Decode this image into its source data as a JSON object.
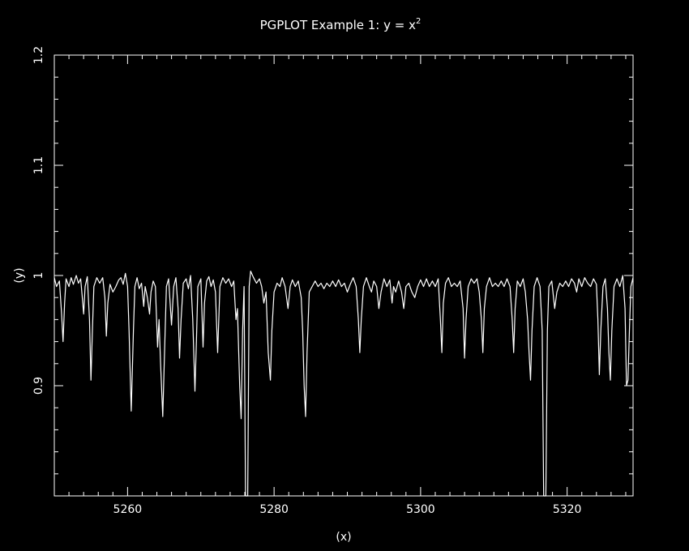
{
  "colors": {
    "background": "#000000",
    "foreground": "#ffffff"
  },
  "chart_data": {
    "type": "line",
    "title": "PGPLOT Example 1: y = x",
    "title_superscript": "2",
    "xlabel": "(x)",
    "ylabel": "(y)",
    "xlim": [
      5250,
      5329
    ],
    "ylim": [
      0.8,
      1.2
    ],
    "x_major_ticks": [
      5260,
      5280,
      5300,
      5320
    ],
    "x_tick_labels": [
      "5260",
      "5280",
      "5300",
      "5320"
    ],
    "y_major_ticks": [
      0.9,
      1.0,
      1.1,
      1.2
    ],
    "y_tick_labels": [
      "0.9",
      "1",
      "1.1",
      "1.2"
    ],
    "grid": false,
    "series": [
      {
        "points": [
          [
            5250.0,
            0.998
          ],
          [
            5250.3,
            0.99
          ],
          [
            5250.7,
            0.995
          ],
          [
            5251.0,
            0.965
          ],
          [
            5251.2,
            0.94
          ],
          [
            5251.4,
            0.975
          ],
          [
            5251.6,
            0.997
          ],
          [
            5252.0,
            0.99
          ],
          [
            5252.3,
            0.998
          ],
          [
            5252.6,
            0.992
          ],
          [
            5253.0,
            1.0
          ],
          [
            5253.3,
            0.993
          ],
          [
            5253.6,
            0.997
          ],
          [
            5253.8,
            0.982
          ],
          [
            5254.0,
            0.965
          ],
          [
            5254.2,
            0.99
          ],
          [
            5254.5,
            0.999
          ],
          [
            5254.8,
            0.96
          ],
          [
            5255.0,
            0.905
          ],
          [
            5255.2,
            0.95
          ],
          [
            5255.4,
            0.99
          ],
          [
            5255.8,
            0.998
          ],
          [
            5256.2,
            0.993
          ],
          [
            5256.6,
            0.998
          ],
          [
            5256.9,
            0.98
          ],
          [
            5257.1,
            0.945
          ],
          [
            5257.3,
            0.975
          ],
          [
            5257.6,
            0.992
          ],
          [
            5258.0,
            0.985
          ],
          [
            5258.4,
            0.99
          ],
          [
            5258.8,
            0.996
          ],
          [
            5259.1,
            0.998
          ],
          [
            5259.4,
            0.992
          ],
          [
            5259.7,
            1.002
          ],
          [
            5260.0,
            0.99
          ],
          [
            5260.2,
            0.95
          ],
          [
            5260.5,
            0.877
          ],
          [
            5260.8,
            0.95
          ],
          [
            5261.0,
            0.99
          ],
          [
            5261.3,
            0.998
          ],
          [
            5261.6,
            0.988
          ],
          [
            5261.9,
            0.993
          ],
          [
            5262.2,
            0.972
          ],
          [
            5262.4,
            0.99
          ],
          [
            5262.7,
            0.98
          ],
          [
            5263.0,
            0.965
          ],
          [
            5263.2,
            0.985
          ],
          [
            5263.5,
            0.995
          ],
          [
            5263.8,
            0.99
          ],
          [
            5264.1,
            0.935
          ],
          [
            5264.3,
            0.96
          ],
          [
            5264.5,
            0.92
          ],
          [
            5264.8,
            0.872
          ],
          [
            5265.0,
            0.92
          ],
          [
            5265.3,
            0.99
          ],
          [
            5265.6,
            0.997
          ],
          [
            5266.0,
            0.955
          ],
          [
            5266.3,
            0.99
          ],
          [
            5266.6,
            0.998
          ],
          [
            5266.9,
            0.97
          ],
          [
            5267.1,
            0.925
          ],
          [
            5267.3,
            0.96
          ],
          [
            5267.6,
            0.993
          ],
          [
            5268.0,
            0.997
          ],
          [
            5268.3,
            0.988
          ],
          [
            5268.6,
            1.0
          ],
          [
            5268.9,
            0.96
          ],
          [
            5269.2,
            0.895
          ],
          [
            5269.4,
            0.94
          ],
          [
            5269.6,
            0.99
          ],
          [
            5270.0,
            0.997
          ],
          [
            5270.3,
            0.935
          ],
          [
            5270.5,
            0.975
          ],
          [
            5270.8,
            0.995
          ],
          [
            5271.1,
            0.999
          ],
          [
            5271.4,
            0.99
          ],
          [
            5271.7,
            0.996
          ],
          [
            5272.0,
            0.985
          ],
          [
            5272.3,
            0.93
          ],
          [
            5272.6,
            0.99
          ],
          [
            5273.0,
            0.998
          ],
          [
            5273.4,
            0.993
          ],
          [
            5273.8,
            0.997
          ],
          [
            5274.2,
            0.99
          ],
          [
            5274.5,
            0.995
          ],
          [
            5274.8,
            0.96
          ],
          [
            5275.0,
            0.97
          ],
          [
            5275.3,
            0.9
          ],
          [
            5275.5,
            0.87
          ],
          [
            5275.7,
            0.95
          ],
          [
            5275.9,
            0.99
          ],
          [
            5276.1,
            0.8
          ],
          [
            5276.4,
            0.8
          ],
          [
            5276.6,
            0.99
          ],
          [
            5276.8,
            1.004
          ],
          [
            5277.2,
            0.998
          ],
          [
            5277.6,
            0.993
          ],
          [
            5278.0,
            0.997
          ],
          [
            5278.3,
            0.99
          ],
          [
            5278.6,
            0.975
          ],
          [
            5278.9,
            0.985
          ],
          [
            5279.2,
            0.93
          ],
          [
            5279.5,
            0.905
          ],
          [
            5279.7,
            0.95
          ],
          [
            5280.0,
            0.985
          ],
          [
            5280.4,
            0.993
          ],
          [
            5280.8,
            0.99
          ],
          [
            5281.1,
            0.998
          ],
          [
            5281.5,
            0.99
          ],
          [
            5281.9,
            0.97
          ],
          [
            5282.2,
            0.99
          ],
          [
            5282.5,
            0.996
          ],
          [
            5282.9,
            0.99
          ],
          [
            5283.3,
            0.995
          ],
          [
            5283.7,
            0.98
          ],
          [
            5283.9,
            0.95
          ],
          [
            5284.1,
            0.9
          ],
          [
            5284.3,
            0.872
          ],
          [
            5284.5,
            0.93
          ],
          [
            5284.8,
            0.985
          ],
          [
            5285.2,
            0.99
          ],
          [
            5285.6,
            0.995
          ],
          [
            5286.0,
            0.99
          ],
          [
            5286.4,
            0.993
          ],
          [
            5286.8,
            0.988
          ],
          [
            5287.2,
            0.993
          ],
          [
            5287.6,
            0.99
          ],
          [
            5288.0,
            0.995
          ],
          [
            5288.4,
            0.99
          ],
          [
            5288.8,
            0.996
          ],
          [
            5289.2,
            0.99
          ],
          [
            5289.6,
            0.993
          ],
          [
            5290.0,
            0.985
          ],
          [
            5290.4,
            0.992
          ],
          [
            5290.8,
            0.998
          ],
          [
            5291.2,
            0.99
          ],
          [
            5291.5,
            0.96
          ],
          [
            5291.7,
            0.93
          ],
          [
            5291.9,
            0.96
          ],
          [
            5292.2,
            0.99
          ],
          [
            5292.6,
            0.998
          ],
          [
            5293.0,
            0.99
          ],
          [
            5293.3,
            0.985
          ],
          [
            5293.6,
            0.995
          ],
          [
            5294.0,
            0.99
          ],
          [
            5294.3,
            0.97
          ],
          [
            5294.6,
            0.985
          ],
          [
            5295.0,
            0.997
          ],
          [
            5295.4,
            0.99
          ],
          [
            5295.8,
            0.996
          ],
          [
            5296.1,
            0.975
          ],
          [
            5296.3,
            0.99
          ],
          [
            5296.6,
            0.985
          ],
          [
            5297.0,
            0.995
          ],
          [
            5297.4,
            0.985
          ],
          [
            5297.7,
            0.97
          ],
          [
            5298.0,
            0.99
          ],
          [
            5298.4,
            0.993
          ],
          [
            5298.8,
            0.985
          ],
          [
            5299.2,
            0.98
          ],
          [
            5299.6,
            0.99
          ],
          [
            5300.0,
            0.996
          ],
          [
            5300.4,
            0.99
          ],
          [
            5300.8,
            0.997
          ],
          [
            5301.2,
            0.99
          ],
          [
            5301.6,
            0.995
          ],
          [
            5302.0,
            0.99
          ],
          [
            5302.4,
            0.997
          ],
          [
            5302.7,
            0.96
          ],
          [
            5302.9,
            0.93
          ],
          [
            5303.1,
            0.975
          ],
          [
            5303.4,
            0.993
          ],
          [
            5303.8,
            0.998
          ],
          [
            5304.2,
            0.99
          ],
          [
            5304.6,
            0.993
          ],
          [
            5305.0,
            0.99
          ],
          [
            5305.4,
            0.995
          ],
          [
            5305.8,
            0.97
          ],
          [
            5306.0,
            0.925
          ],
          [
            5306.2,
            0.96
          ],
          [
            5306.5,
            0.99
          ],
          [
            5306.9,
            0.997
          ],
          [
            5307.3,
            0.993
          ],
          [
            5307.7,
            0.997
          ],
          [
            5308.0,
            0.985
          ],
          [
            5308.3,
            0.96
          ],
          [
            5308.5,
            0.93
          ],
          [
            5308.7,
            0.97
          ],
          [
            5309.0,
            0.99
          ],
          [
            5309.4,
            0.998
          ],
          [
            5309.8,
            0.99
          ],
          [
            5310.2,
            0.993
          ],
          [
            5310.6,
            0.99
          ],
          [
            5311.0,
            0.995
          ],
          [
            5311.4,
            0.99
          ],
          [
            5311.8,
            0.997
          ],
          [
            5312.2,
            0.99
          ],
          [
            5312.5,
            0.96
          ],
          [
            5312.7,
            0.93
          ],
          [
            5312.9,
            0.97
          ],
          [
            5313.2,
            0.995
          ],
          [
            5313.6,
            0.99
          ],
          [
            5314.0,
            0.997
          ],
          [
            5314.3,
            0.985
          ],
          [
            5314.6,
            0.96
          ],
          [
            5314.8,
            0.93
          ],
          [
            5315.0,
            0.905
          ],
          [
            5315.2,
            0.95
          ],
          [
            5315.5,
            0.99
          ],
          [
            5315.9,
            0.998
          ],
          [
            5316.3,
            0.99
          ],
          [
            5316.6,
            0.95
          ],
          [
            5316.8,
            0.8
          ],
          [
            5317.1,
            0.8
          ],
          [
            5317.3,
            0.95
          ],
          [
            5317.5,
            0.99
          ],
          [
            5317.9,
            0.995
          ],
          [
            5318.3,
            0.97
          ],
          [
            5318.6,
            0.985
          ],
          [
            5319.0,
            0.993
          ],
          [
            5319.4,
            0.99
          ],
          [
            5319.8,
            0.995
          ],
          [
            5320.2,
            0.99
          ],
          [
            5320.6,
            0.997
          ],
          [
            5321.0,
            0.993
          ],
          [
            5321.3,
            0.985
          ],
          [
            5321.6,
            0.997
          ],
          [
            5322.0,
            0.99
          ],
          [
            5322.4,
            0.998
          ],
          [
            5322.8,
            0.993
          ],
          [
            5323.2,
            0.99
          ],
          [
            5323.6,
            0.997
          ],
          [
            5324.0,
            0.992
          ],
          [
            5324.2,
            0.96
          ],
          [
            5324.4,
            0.91
          ],
          [
            5324.6,
            0.95
          ],
          [
            5324.9,
            0.99
          ],
          [
            5325.2,
            0.997
          ],
          [
            5325.5,
            0.97
          ],
          [
            5325.7,
            0.93
          ],
          [
            5325.9,
            0.905
          ],
          [
            5326.1,
            0.95
          ],
          [
            5326.4,
            0.99
          ],
          [
            5326.8,
            0.997
          ],
          [
            5327.2,
            0.99
          ],
          [
            5327.6,
            1.0
          ],
          [
            5327.9,
            0.97
          ],
          [
            5328.1,
            0.9
          ],
          [
            5328.3,
            0.905
          ],
          [
            5328.5,
            0.95
          ],
          [
            5328.7,
            0.99
          ],
          [
            5329.0,
            0.998
          ]
        ]
      }
    ]
  }
}
